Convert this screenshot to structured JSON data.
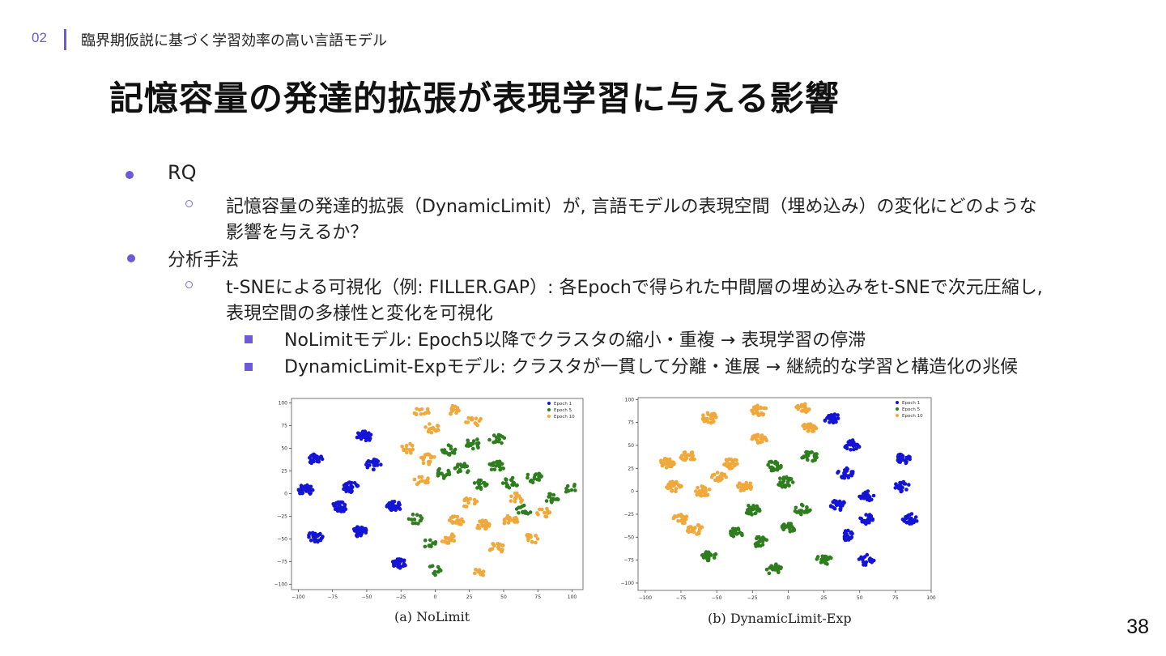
{
  "header": {
    "section_number": "02",
    "section_title": "臨界期仮説に基づく学習効率の高い言語モデル"
  },
  "slide": {
    "title": "記憶容量の発達的拡張が表現学習に与える影響",
    "page_number": "38"
  },
  "bullets": {
    "rq_label": "RQ",
    "rq_text_line1": "記憶容量の発達的拡張（DynamicLimit）が, 言語モデルの表現空間（埋め込み）の変化にどのような",
    "rq_text_line2": "影響を与えるか？",
    "method_label": "分析手法",
    "method_text_line1": "t-SNEによる可視化（例: FILLER.GAP）: 各Epochで得られた中間層の埋め込みをt-SNEで次元圧縮し,",
    "method_text_line2": "表現空間の多様性と変化を可視化",
    "finding_nolimit": "NoLimitモデル: Epoch5以降でクラスタの縮小・重複 → 表現学習の停滞",
    "finding_dynamic": "DynamicLimit-Expモデル: クラスタが一貫して分離・進展 → 継続的な学習と構造化の兆候"
  },
  "colors": {
    "accent": "#6b5bd6",
    "epoch1": "#1414d6",
    "epoch5": "#2e7d1e",
    "epoch10": "#f0a83a"
  },
  "chart_data": [
    {
      "type": "scatter",
      "caption": "(a) NoLimit",
      "legend": [
        "Epoch 1",
        "Epoch 5",
        "Epoch 10"
      ],
      "legend_position": "top-right",
      "xlim": [
        -105,
        108
      ],
      "ylim": [
        -106,
        105
      ],
      "xticks": [
        -100,
        -75,
        -50,
        -25,
        0,
        25,
        50,
        75,
        100
      ],
      "yticks": [
        100,
        75,
        50,
        25,
        0,
        -25,
        -50,
        -75,
        -100
      ],
      "clusters": [
        {
          "series": "Epoch 1",
          "x": -88,
          "y": 38,
          "n": 26
        },
        {
          "series": "Epoch 1",
          "x": -95,
          "y": 4,
          "n": 34
        },
        {
          "series": "Epoch 1",
          "x": -88,
          "y": -48,
          "n": 28
        },
        {
          "series": "Epoch 1",
          "x": -70,
          "y": -15,
          "n": 30
        },
        {
          "series": "Epoch 1",
          "x": -62,
          "y": 7,
          "n": 30
        },
        {
          "series": "Epoch 1",
          "x": -55,
          "y": -42,
          "n": 34
        },
        {
          "series": "Epoch 1",
          "x": -52,
          "y": 63,
          "n": 30
        },
        {
          "series": "Epoch 1",
          "x": -45,
          "y": 32,
          "n": 28
        },
        {
          "series": "Epoch 1",
          "x": -30,
          "y": -14,
          "n": 34
        },
        {
          "series": "Epoch 1",
          "x": -26,
          "y": -78,
          "n": 30
        },
        {
          "series": "Epoch 10",
          "x": -10,
          "y": 90,
          "n": 12
        },
        {
          "series": "Epoch 10",
          "x": 12,
          "y": 92,
          "n": 12
        },
        {
          "series": "Epoch 10",
          "x": 28,
          "y": 80,
          "n": 12
        },
        {
          "series": "Epoch 10",
          "x": -2,
          "y": 72,
          "n": 16
        },
        {
          "series": "Epoch 10",
          "x": -5,
          "y": 38,
          "n": 16
        },
        {
          "series": "Epoch 10",
          "x": -10,
          "y": 14,
          "n": 14
        },
        {
          "series": "Epoch 10",
          "x": -20,
          "y": 50,
          "n": 12
        },
        {
          "series": "Epoch 10",
          "x": 15,
          "y": -30,
          "n": 22
        },
        {
          "series": "Epoch 10",
          "x": 35,
          "y": -35,
          "n": 22
        },
        {
          "series": "Epoch 10",
          "x": 55,
          "y": -30,
          "n": 20
        },
        {
          "series": "Epoch 10",
          "x": 10,
          "y": -50,
          "n": 18
        },
        {
          "series": "Epoch 10",
          "x": 45,
          "y": -60,
          "n": 16
        },
        {
          "series": "Epoch 10",
          "x": 70,
          "y": -50,
          "n": 14
        },
        {
          "series": "Epoch 10",
          "x": 80,
          "y": -20,
          "n": 12
        },
        {
          "series": "Epoch 10",
          "x": 25,
          "y": -10,
          "n": 14
        },
        {
          "series": "Epoch 10",
          "x": 60,
          "y": -5,
          "n": 12
        },
        {
          "series": "Epoch 10",
          "x": 30,
          "y": -88,
          "n": 10
        },
        {
          "series": "Epoch 5",
          "x": 10,
          "y": 48,
          "n": 18
        },
        {
          "series": "Epoch 5",
          "x": 28,
          "y": 55,
          "n": 18
        },
        {
          "series": "Epoch 5",
          "x": 45,
          "y": 30,
          "n": 22
        },
        {
          "series": "Epoch 5",
          "x": 20,
          "y": 28,
          "n": 18
        },
        {
          "series": "Epoch 5",
          "x": 5,
          "y": 22,
          "n": 14
        },
        {
          "series": "Epoch 5",
          "x": 32,
          "y": 10,
          "n": 18
        },
        {
          "series": "Epoch 5",
          "x": 55,
          "y": 12,
          "n": 18
        },
        {
          "series": "Epoch 5",
          "x": 72,
          "y": 18,
          "n": 18
        },
        {
          "series": "Epoch 5",
          "x": 85,
          "y": -5,
          "n": 16
        },
        {
          "series": "Epoch 5",
          "x": 65,
          "y": -18,
          "n": 14
        },
        {
          "series": "Epoch 5",
          "x": 45,
          "y": 60,
          "n": 16
        },
        {
          "series": "Epoch 5",
          "x": -5,
          "y": -55,
          "n": 10
        },
        {
          "series": "Epoch 5",
          "x": -15,
          "y": -28,
          "n": 12
        },
        {
          "series": "Epoch 5",
          "x": 0,
          "y": -85,
          "n": 10
        },
        {
          "series": "Epoch 5",
          "x": 100,
          "y": 5,
          "n": 8
        }
      ]
    },
    {
      "type": "scatter",
      "caption": "(b) DynamicLimit-Exp",
      "legend": [
        "Epoch 1",
        "Epoch 5",
        "Epoch 10"
      ],
      "legend_position": "top-right",
      "xlim": [
        -105,
        100
      ],
      "ylim": [
        -108,
        102
      ],
      "xticks": [
        -100,
        -75,
        -50,
        -25,
        0,
        25,
        50,
        75,
        100
      ],
      "yticks": [
        100,
        75,
        50,
        25,
        0,
        -25,
        -50,
        -75,
        -100
      ],
      "clusters": [
        {
          "series": "Epoch 10",
          "x": -20,
          "y": 88,
          "n": 26
        },
        {
          "series": "Epoch 10",
          "x": -55,
          "y": 80,
          "n": 26
        },
        {
          "series": "Epoch 10",
          "x": -85,
          "y": 30,
          "n": 30
        },
        {
          "series": "Epoch 10",
          "x": -70,
          "y": 38,
          "n": 22
        },
        {
          "series": "Epoch 10",
          "x": -40,
          "y": 30,
          "n": 24
        },
        {
          "series": "Epoch 10",
          "x": -80,
          "y": 5,
          "n": 28
        },
        {
          "series": "Epoch 10",
          "x": -60,
          "y": 0,
          "n": 26
        },
        {
          "series": "Epoch 10",
          "x": -48,
          "y": 15,
          "n": 20
        },
        {
          "series": "Epoch 10",
          "x": -30,
          "y": 5,
          "n": 26
        },
        {
          "series": "Epoch 10",
          "x": -75,
          "y": -30,
          "n": 24
        },
        {
          "series": "Epoch 10",
          "x": -65,
          "y": -42,
          "n": 22
        },
        {
          "series": "Epoch 10",
          "x": 10,
          "y": 90,
          "n": 20
        },
        {
          "series": "Epoch 10",
          "x": 15,
          "y": 70,
          "n": 22
        },
        {
          "series": "Epoch 10",
          "x": -20,
          "y": 58,
          "n": 22
        },
        {
          "series": "Epoch 5",
          "x": -10,
          "y": 28,
          "n": 26
        },
        {
          "series": "Epoch 5",
          "x": 15,
          "y": 38,
          "n": 26
        },
        {
          "series": "Epoch 5",
          "x": -2,
          "y": 10,
          "n": 28
        },
        {
          "series": "Epoch 5",
          "x": -25,
          "y": -20,
          "n": 28
        },
        {
          "series": "Epoch 5",
          "x": -35,
          "y": -45,
          "n": 22
        },
        {
          "series": "Epoch 5",
          "x": 10,
          "y": -20,
          "n": 24
        },
        {
          "series": "Epoch 5",
          "x": 0,
          "y": -40,
          "n": 22
        },
        {
          "series": "Epoch 5",
          "x": -20,
          "y": -55,
          "n": 22
        },
        {
          "series": "Epoch 5",
          "x": -10,
          "y": -85,
          "n": 24
        },
        {
          "series": "Epoch 5",
          "x": 25,
          "y": -75,
          "n": 24
        },
        {
          "series": "Epoch 5",
          "x": -55,
          "y": -70,
          "n": 22
        },
        {
          "series": "Epoch 1",
          "x": 30,
          "y": 80,
          "n": 24
        },
        {
          "series": "Epoch 1",
          "x": 45,
          "y": 50,
          "n": 26
        },
        {
          "series": "Epoch 1",
          "x": 40,
          "y": 20,
          "n": 24
        },
        {
          "series": "Epoch 1",
          "x": 80,
          "y": 35,
          "n": 26
        },
        {
          "series": "Epoch 1",
          "x": 80,
          "y": 5,
          "n": 24
        },
        {
          "series": "Epoch 1",
          "x": 55,
          "y": -5,
          "n": 24
        },
        {
          "series": "Epoch 1",
          "x": 35,
          "y": -15,
          "n": 26
        },
        {
          "series": "Epoch 1",
          "x": 55,
          "y": -30,
          "n": 24
        },
        {
          "series": "Epoch 1",
          "x": 85,
          "y": -30,
          "n": 24
        },
        {
          "series": "Epoch 1",
          "x": 40,
          "y": -48,
          "n": 22
        },
        {
          "series": "Epoch 1",
          "x": 55,
          "y": -75,
          "n": 22
        }
      ]
    }
  ]
}
